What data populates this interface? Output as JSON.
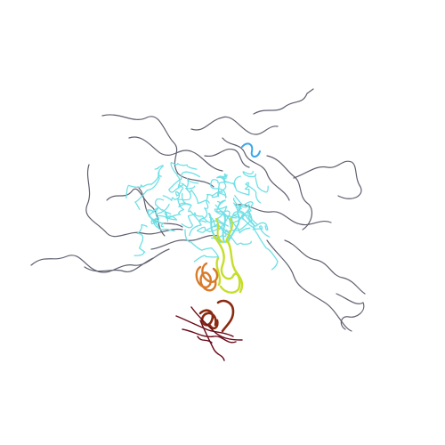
{
  "scene": {
    "background": "#ffffff",
    "colors": {
      "coil_grey": "#5f6070",
      "cyan": "#6fe0e6",
      "light_blue": "#3aa7e8",
      "yellow_green": "#c6de2a",
      "orange": "#d97a2a",
      "brown": "#8a2a10",
      "dark_red": "#6a0a18"
    }
  }
}
